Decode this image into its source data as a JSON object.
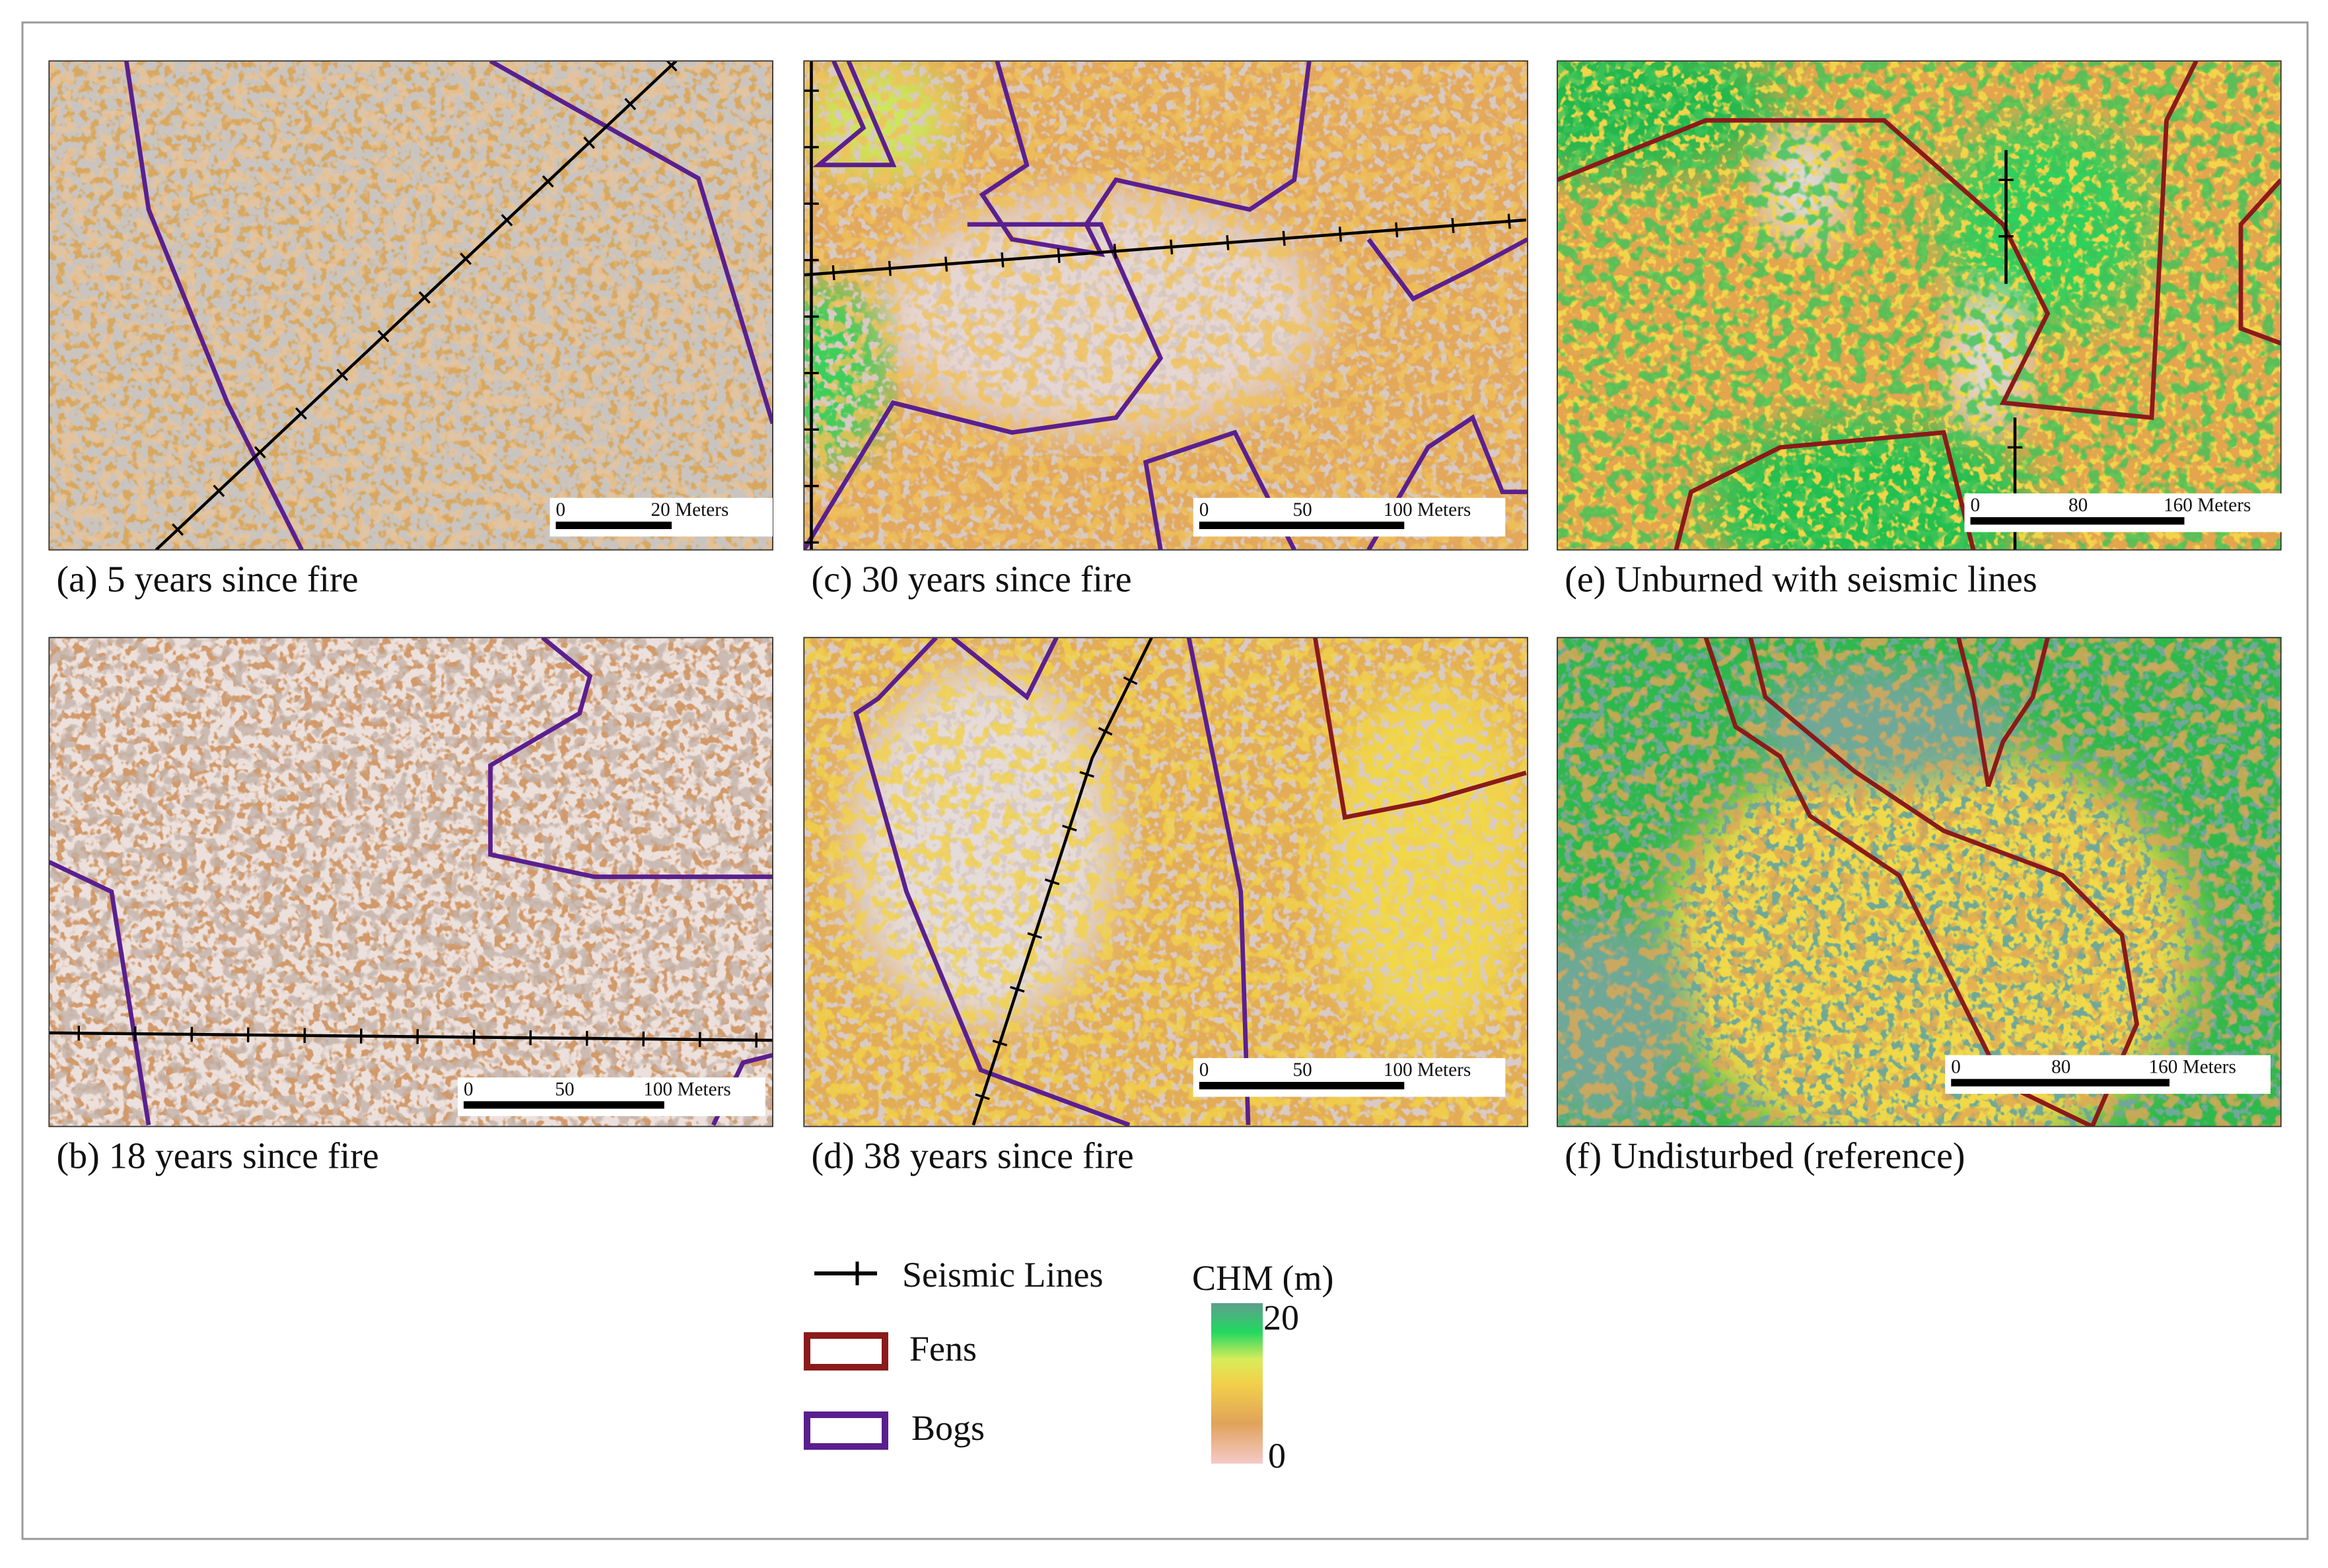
{
  "panels": [
    {
      "caption": "(a) 5 years since fire",
      "scale": [
        "0",
        "20 Meters"
      ]
    },
    {
      "caption": "(b) 18 years since fire",
      "scale": [
        "0",
        "50",
        "100 Meters"
      ]
    },
    {
      "caption": "(c) 30 years since fire",
      "scale": [
        "0",
        "50",
        "100 Meters"
      ]
    },
    {
      "caption": "(d) 38 years since fire",
      "scale": [
        "0",
        "50",
        "100 Meters"
      ]
    },
    {
      "caption": "(e) Unburned with seismic lines",
      "scale": [
        "0",
        "80",
        "160 Meters"
      ]
    },
    {
      "caption": "(f) Undisturbed (reference)",
      "scale": [
        "0",
        "80",
        "160 Meters"
      ]
    }
  ],
  "legend": {
    "items": [
      "Seismic Lines",
      "Fens",
      "Bogs"
    ]
  },
  "colorbar": {
    "title": "CHM (m)",
    "max": "20",
    "min": "0"
  }
}
